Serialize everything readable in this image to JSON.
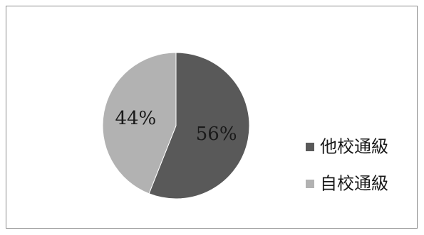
{
  "chart_data": {
    "type": "pie",
    "title": "",
    "slices": [
      {
        "label": "他校通級",
        "value": 56,
        "display": "56%",
        "color": "#595959"
      },
      {
        "label": "自校通級",
        "value": 44,
        "display": "44%",
        "color": "#b2b2b2"
      }
    ],
    "legend_position": "right",
    "start": "top",
    "direction": "clockwise"
  }
}
